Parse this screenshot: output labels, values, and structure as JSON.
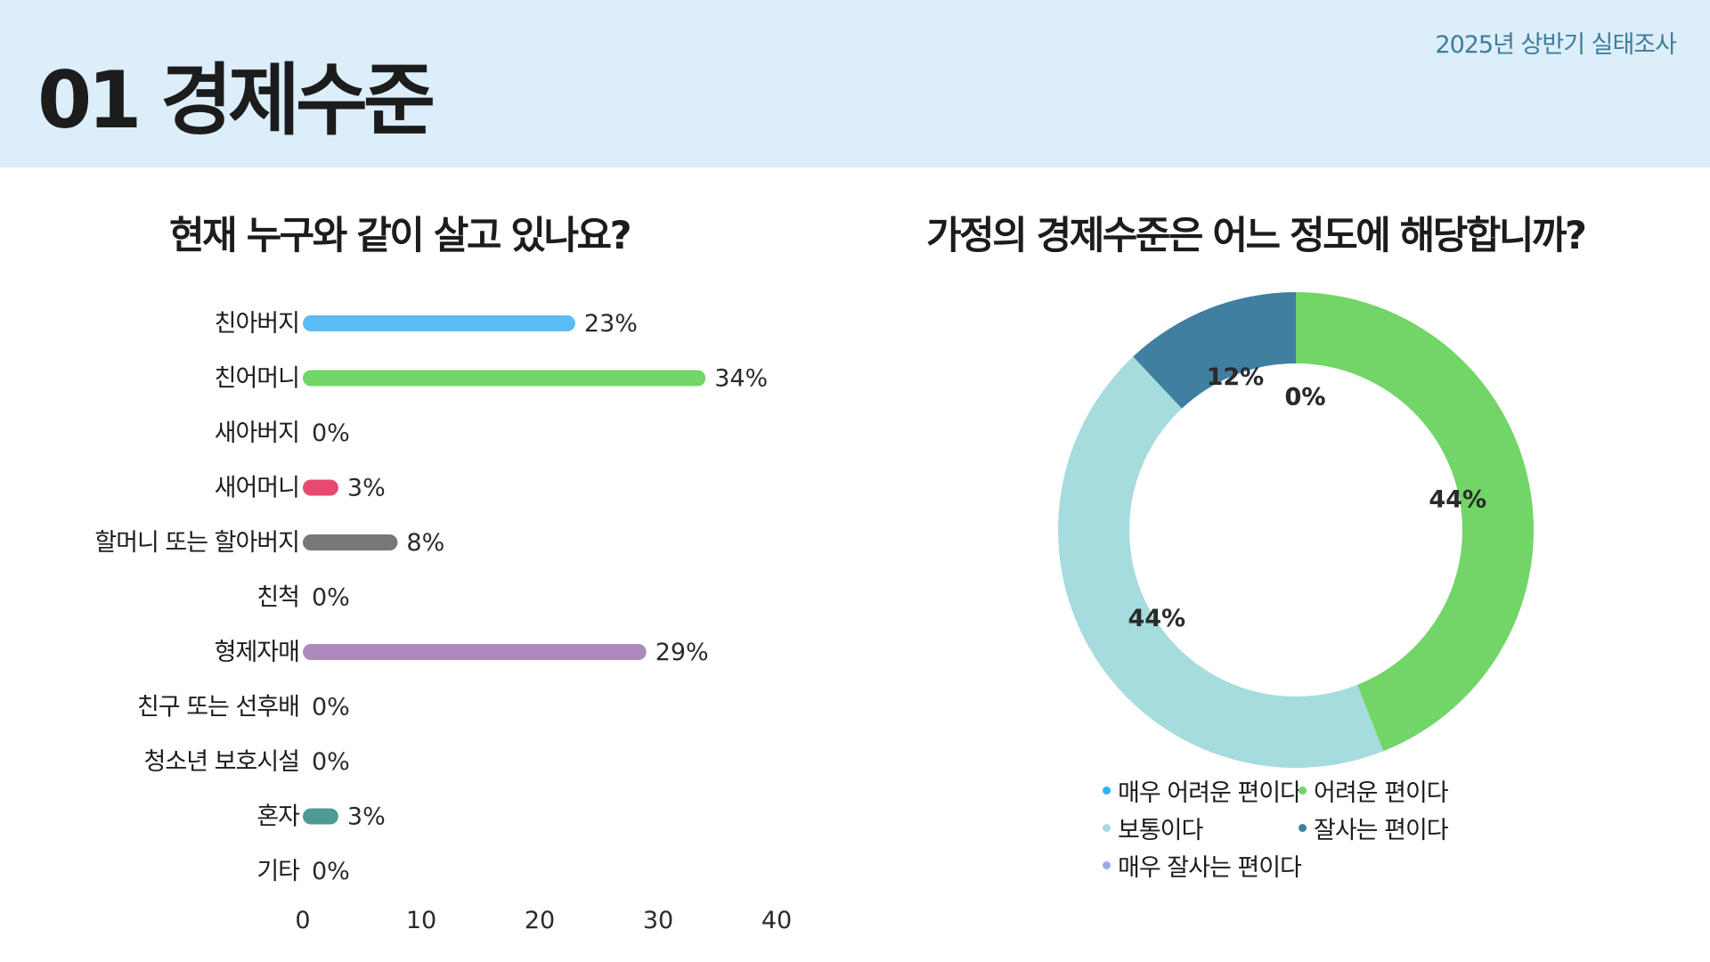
{
  "header": {
    "title": "01 경제수준",
    "survey_label": "2025년 상반기 실태조사"
  },
  "chart_data": [
    {
      "type": "bar",
      "orientation": "horizontal",
      "title": "현재 누구와 같이 살고 있나요?",
      "categories": [
        "친아버지",
        "친어머니",
        "새아버지",
        "새어머니",
        "할머니 또는 할아버지",
        "친척",
        "형제자매",
        "친구 또는 선후배",
        "청소년 보호시설",
        "혼자",
        "기타"
      ],
      "values": [
        23,
        34,
        0,
        3,
        8,
        0,
        29,
        0,
        0,
        3,
        0
      ],
      "value_labels": [
        "23%",
        "34%",
        "0%",
        "3%",
        "8%",
        "0%",
        "29%",
        "0%",
        "0%",
        "3%",
        "0%"
      ],
      "colors": [
        "#5bbcf8",
        "#71d567",
        "#cccccc",
        "#e84a6f",
        "#777777",
        "#cccccc",
        "#ad8abe",
        "#cccccc",
        "#cccccc",
        "#4f9a95",
        "#cccccc"
      ],
      "xlim": [
        0,
        40
      ],
      "x_ticks": [
        "0",
        "10",
        "20",
        "30",
        "40"
      ],
      "grid": false
    },
    {
      "type": "pie",
      "variant": "donut",
      "title": "가정의 경제수준은 어느 정도에 해당합니까?",
      "categories": [
        "매우 어려운 편이다",
        "어려운 편이다",
        "보통이다",
        "잘사는 편이다",
        "매우 잘사는 편이다"
      ],
      "values": [
        0,
        44,
        44,
        12,
        0
      ],
      "value_labels": [
        "0%",
        "44%",
        "44%",
        "12%",
        "0%"
      ],
      "colors": [
        "#29b6f6",
        "#71d567",
        "#a6dcdd",
        "#417fa1",
        "#9fa8e8"
      ],
      "legend_position": "bottom"
    }
  ]
}
